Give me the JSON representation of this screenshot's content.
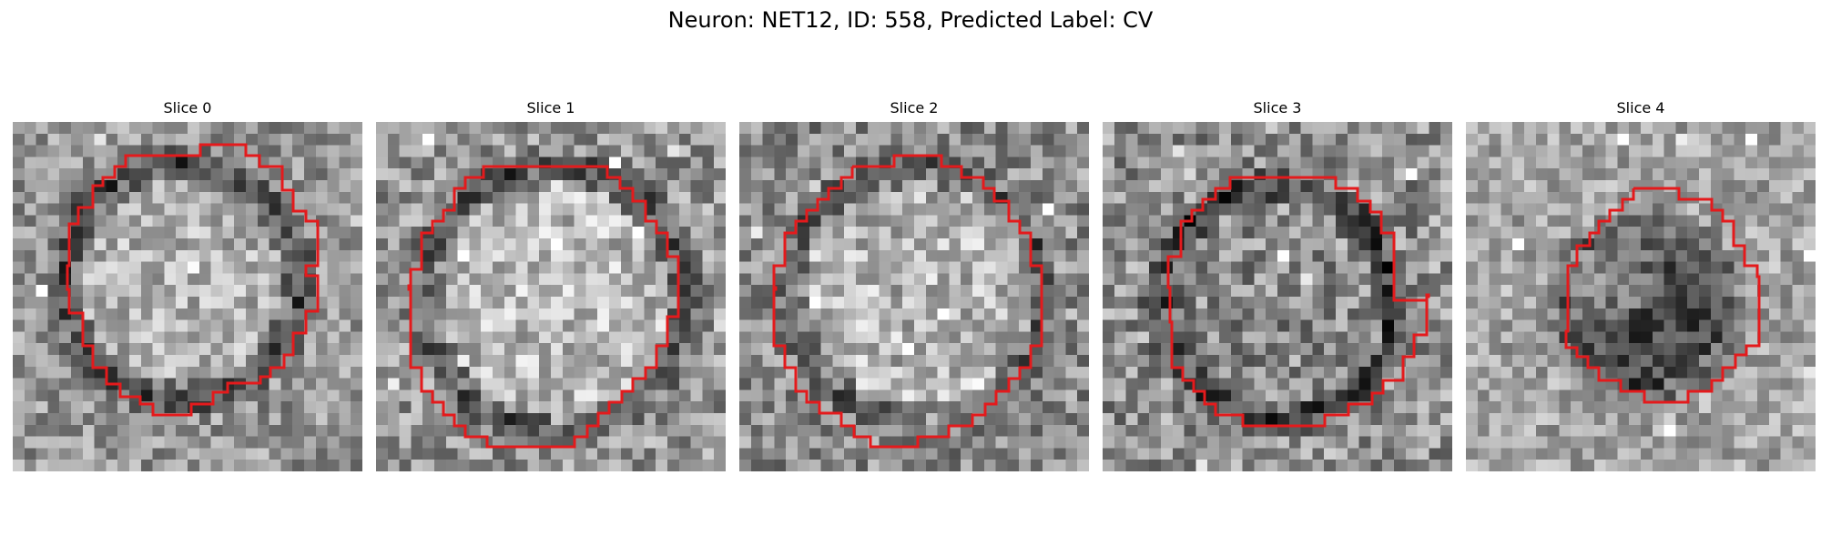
{
  "figure": {
    "title": "Neuron: NET12, ID: 558, Predicted Label: CV"
  },
  "panels": [
    {
      "title": "Slice 0"
    },
    {
      "title": "Slice 1"
    },
    {
      "title": "Slice 2"
    },
    {
      "title": "Slice 3"
    },
    {
      "title": "Slice 4"
    }
  ],
  "colors": {
    "contour": "#e41a1c",
    "background": "#ffffff"
  }
}
